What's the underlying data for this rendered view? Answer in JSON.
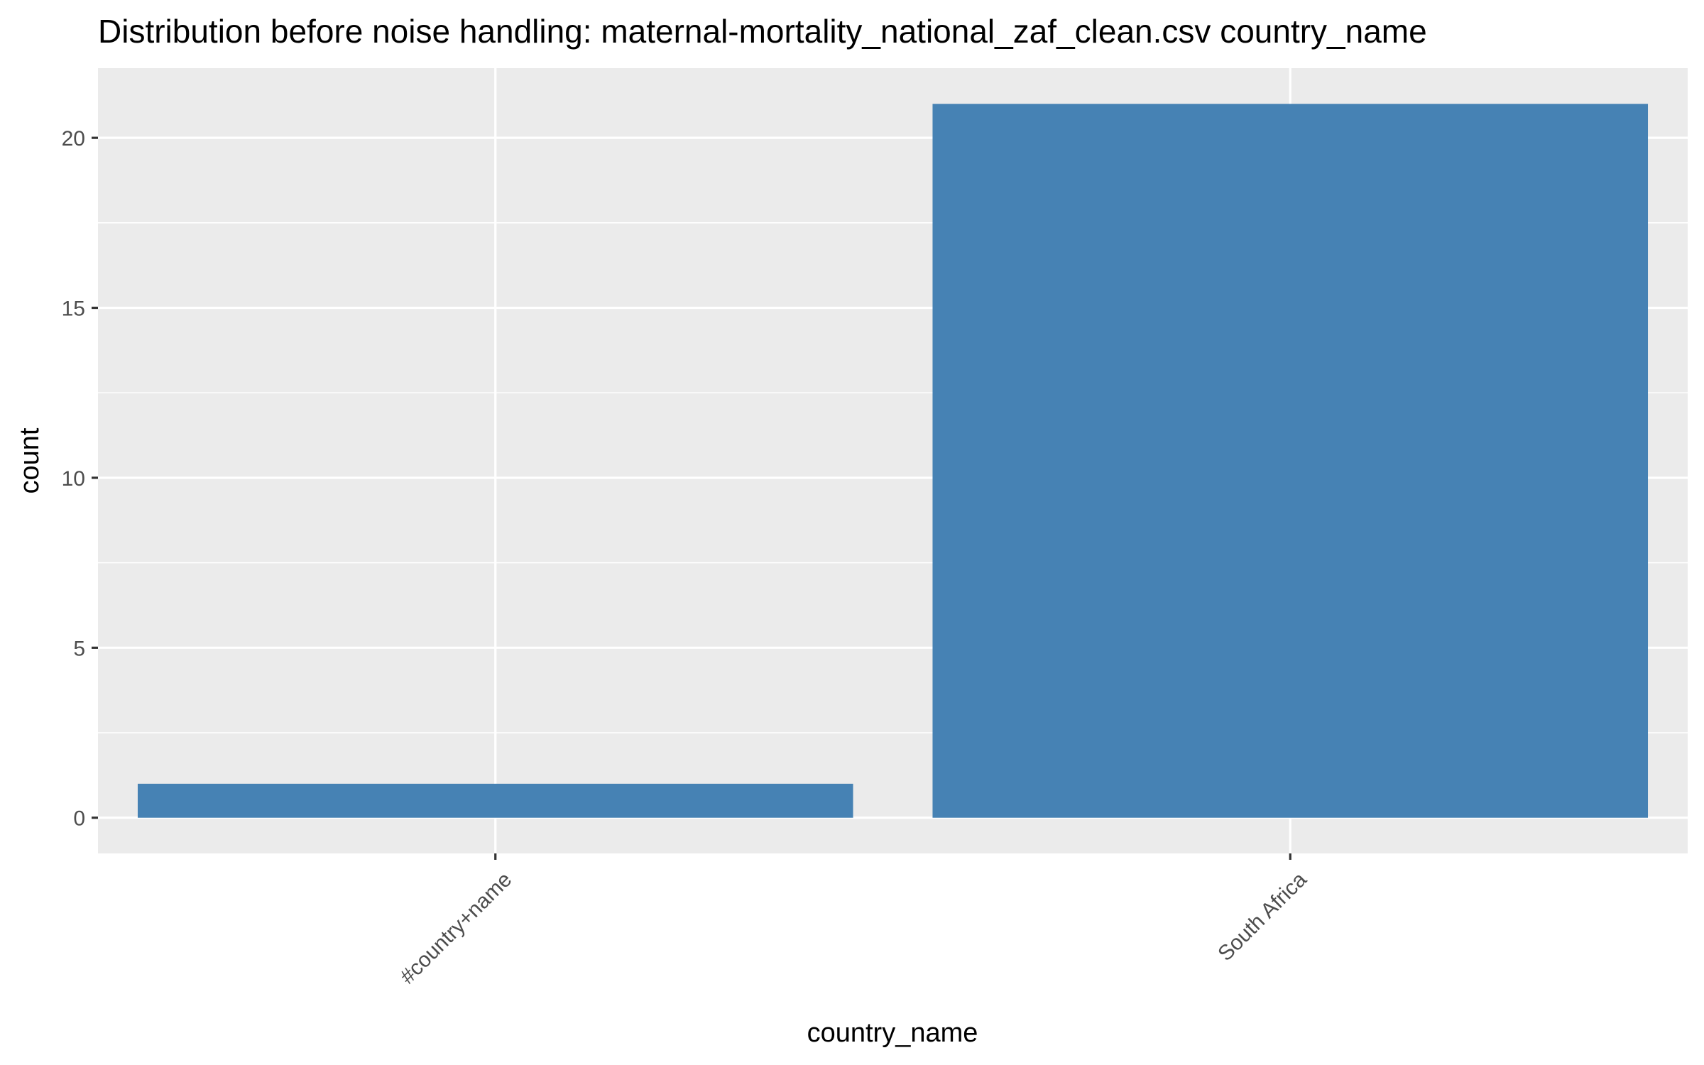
{
  "chart_data": {
    "type": "bar",
    "title": "Distribution before noise handling: maternal-mortality_national_zaf_clean.csv country_name",
    "xlabel": "country_name",
    "ylabel": "count",
    "categories": [
      "#country+name",
      "South Africa"
    ],
    "values": [
      1,
      21
    ],
    "ylim": [
      -1.05,
      22.05
    ],
    "yticks": [
      0,
      5,
      10,
      15,
      20
    ],
    "grid": true,
    "bar_color": "#4682B4",
    "panel_background": "#EBEBEB",
    "grid_color": "#FFFFFF",
    "tick_label_color": "#4D4D4D"
  }
}
